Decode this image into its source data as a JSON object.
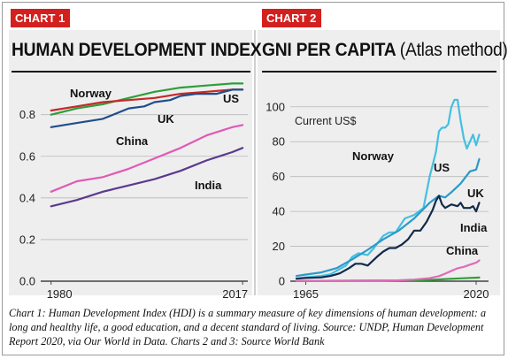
{
  "charts_header": {
    "chart1_tag": "CHART 1",
    "chart2_tag": "CHART 2",
    "chart1_title": "HUMAN DEVELOPMENT INDEX",
    "chart2_title_main": "GNI PER CAPITA",
    "chart2_title_sub": "(Atlas method)"
  },
  "caption": "Chart 1: Human Development Index (HDI) is a summary measure of key dimensions of human development: a long and healthy life, a good education, and a decent standard of living. Source: UNDP, Human Development Report 2020, via Our World in Data. Charts 2 and 3: Source World Bank",
  "colors": {
    "tag_red": "#d41f1f",
    "norway": "#2e9e3a",
    "us": "#c62828",
    "uk": "#1f4e8c",
    "china": "#e05ab4",
    "india": "#5b3a8e",
    "norway2": "#45bfe0",
    "us2": "#2b9ac8",
    "uk2": "#122a4a",
    "china2": "#e06ab8",
    "india2": "#2e9e3a"
  },
  "chart_data": [
    {
      "type": "line",
      "title": "HUMAN DEVELOPMENT INDEX",
      "xlim": [
        1978,
        2018
      ],
      "ylim": [
        0,
        0.96
      ],
      "yticks": [
        "0.0",
        "0.2",
        "0.4",
        "0.6",
        "0.8"
      ],
      "xticks": [
        "1980",
        "2017"
      ],
      "grid": true,
      "series": [
        {
          "name": "Norway",
          "label": "Norway",
          "color": "#2e9e3a",
          "x": [
            1980,
            1985,
            1990,
            1995,
            2000,
            2005,
            2010,
            2015,
            2017
          ],
          "values": [
            0.8,
            0.83,
            0.85,
            0.88,
            0.91,
            0.93,
            0.94,
            0.95,
            0.95
          ]
        },
        {
          "name": "US",
          "label": "US",
          "color": "#c62828",
          "x": [
            1980,
            1985,
            1990,
            1995,
            2000,
            2005,
            2010,
            2015,
            2017
          ],
          "values": [
            0.82,
            0.84,
            0.86,
            0.87,
            0.88,
            0.9,
            0.91,
            0.92,
            0.92
          ]
        },
        {
          "name": "UK",
          "label": "UK",
          "color": "#1f4e8c",
          "x": [
            1980,
            1985,
            1990,
            1995,
            1998,
            2000,
            2003,
            2005,
            2008,
            2010,
            2012,
            2015,
            2017
          ],
          "values": [
            0.74,
            0.76,
            0.78,
            0.83,
            0.84,
            0.86,
            0.87,
            0.89,
            0.9,
            0.9,
            0.9,
            0.92,
            0.92
          ]
        },
        {
          "name": "China",
          "label": "China",
          "color": "#e05ab4",
          "x": [
            1980,
            1985,
            1990,
            1995,
            2000,
            2005,
            2010,
            2015,
            2017
          ],
          "values": [
            0.43,
            0.48,
            0.5,
            0.54,
            0.59,
            0.64,
            0.7,
            0.74,
            0.75
          ]
        },
        {
          "name": "India",
          "label": "India",
          "color": "#5b3a8e",
          "x": [
            1980,
            1985,
            1990,
            1995,
            2000,
            2005,
            2010,
            2015,
            2017
          ],
          "values": [
            0.36,
            0.39,
            0.43,
            0.46,
            0.49,
            0.53,
            0.58,
            0.62,
            0.64
          ]
        }
      ]
    },
    {
      "type": "line",
      "title": "GNI PER CAPITA (Atlas method)",
      "ylabel": "Current US$",
      "xlim": [
        1960,
        2024
      ],
      "ylim": [
        0,
        108
      ],
      "yticks": [
        "0",
        "20",
        "40",
        "60",
        "80",
        "100"
      ],
      "xticks": [
        "1965",
        "2020"
      ],
      "grid": true,
      "series": [
        {
          "name": "Norway",
          "label": "Norway",
          "color": "#45bfe0",
          "x": [
            1962,
            1965,
            1970,
            1973,
            1975,
            1978,
            1980,
            1982,
            1985,
            1987,
            1990,
            1992,
            1994,
            1997,
            2000,
            2003,
            2005,
            2007,
            2008,
            2009,
            2010,
            2011,
            2012,
            2013,
            2014,
            2015,
            2016,
            2017,
            2018,
            2019,
            2020,
            2021
          ],
          "values": [
            1.5,
            2.2,
            3,
            4,
            6,
            9,
            14,
            16,
            15,
            19,
            26,
            28,
            28,
            36,
            38,
            42,
            60,
            74,
            86,
            88,
            88,
            90,
            100,
            104,
            104,
            92,
            82,
            76,
            80,
            84,
            78,
            84
          ]
        },
        {
          "name": "US",
          "label": "US",
          "color": "#2b9ac8",
          "x": [
            1962,
            1965,
            1970,
            1975,
            1980,
            1985,
            1990,
            1995,
            2000,
            2005,
            2008,
            2010,
            2012,
            2015,
            2018,
            2020,
            2021
          ],
          "values": [
            3,
            3.8,
            5,
            7.5,
            12.5,
            18,
            24,
            29,
            36,
            45,
            49,
            48,
            51,
            56,
            63,
            64,
            70
          ]
        },
        {
          "name": "UK",
          "label": "UK",
          "color": "#122a4a",
          "x": [
            1962,
            1965,
            1970,
            1973,
            1976,
            1979,
            1981,
            1983,
            1985,
            1988,
            1990,
            1992,
            1994,
            1996,
            1998,
            2000,
            2002,
            2004,
            2006,
            2007,
            2008,
            2009,
            2010,
            2012,
            2014,
            2015,
            2016,
            2018,
            2019,
            2020,
            2021
          ],
          "values": [
            1.4,
            1.9,
            2.2,
            3,
            4.5,
            7.5,
            10,
            10,
            9,
            14,
            17,
            19,
            19,
            21,
            24,
            29,
            29,
            34,
            41,
            46,
            49,
            44,
            42,
            44,
            43,
            45,
            42,
            42,
            43,
            40,
            45
          ]
        },
        {
          "name": "India",
          "label": "India",
          "color": "#2e9e3a",
          "x": [
            1962,
            1980,
            1990,
            2000,
            2005,
            2010,
            2015,
            2021
          ],
          "values": [
            0.1,
            0.3,
            0.4,
            0.45,
            0.7,
            1.2,
            1.6,
            2.1
          ]
        },
        {
          "name": "China",
          "label": "China",
          "color": "#e06ab8",
          "x": [
            1962,
            1980,
            1990,
            1995,
            2000,
            2005,
            2008,
            2010,
            2012,
            2014,
            2016,
            2018,
            2020,
            2021
          ],
          "values": [
            0.1,
            0.2,
            0.3,
            0.5,
            0.9,
            1.7,
            2.9,
            4.3,
            5.9,
            7.4,
            8.2,
            9.5,
            10.6,
            11.9
          ]
        }
      ]
    }
  ]
}
